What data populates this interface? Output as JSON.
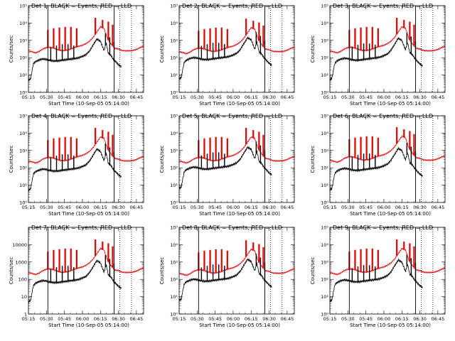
{
  "chart_data": {
    "type": "line",
    "layout": "3x3 grid",
    "y_scale": "log",
    "x_ticks": [
      "05:15",
      "05:30",
      "05:45",
      "06:00",
      "06:15",
      "06:30",
      "06:45"
    ],
    "x_tick_hours": [
      5.25,
      5.5,
      5.75,
      6.0,
      6.25,
      6.5,
      6.75
    ],
    "xlim": [
      5.25,
      6.85
    ],
    "xlabel": "Start Time (10-Sep-05 05:14:00)",
    "ylabel": "Counts/sec",
    "ylim": [
      1,
      100000
    ],
    "series_colors": {
      "events": "#000000",
      "lld": "#e00000"
    },
    "panels": [
      {
        "title": "Det 1: BLACK = Events, RED = LLD",
        "yticks_style": "exp",
        "events_scale": 1.0,
        "lld_scale": 1.0
      },
      {
        "title": "Det 2: BLACK = Events, RED = LLD",
        "yticks_style": "exp",
        "events_scale": 1.2,
        "lld_scale": 0.9
      },
      {
        "title": "Det 3: BLACK = Events, RED = LLD",
        "yticks_style": "exp",
        "events_scale": 1.1,
        "lld_scale": 1.0
      },
      {
        "title": "Det 4: BLACK = Events, RED = LLD",
        "yticks_style": "exp",
        "events_scale": 1.0,
        "lld_scale": 1.0
      },
      {
        "title": "Det 5: BLACK = Events, RED = LLD",
        "yticks_style": "exp",
        "events_scale": 1.3,
        "lld_scale": 1.0
      },
      {
        "title": "Det 6: BLACK = Events, RED = LLD",
        "yticks_style": "exp",
        "events_scale": 1.1,
        "lld_scale": 1.1
      },
      {
        "title": "Det 7: BLACK = Events, RED = LLD",
        "yticks_style": "plain",
        "events_scale": 1.0,
        "lld_scale": 1.0
      },
      {
        "title": "Det 8: BLACK = Events, RED = LLD",
        "yticks_style": "exp",
        "events_scale": 1.2,
        "lld_scale": 0.9
      },
      {
        "title": "Det 9: BLACK = Events, RED = LLD",
        "yticks_style": "exp",
        "events_scale": 1.1,
        "lld_scale": 1.0
      }
    ],
    "vertical_markers": [
      {
        "style": "solid",
        "x": 5.52
      },
      {
        "style": "solid",
        "x": 6.44
      },
      {
        "style": "dotted",
        "x": 6.52
      },
      {
        "style": "dotted",
        "x": 6.68
      }
    ],
    "lld_profile": {
      "x": [
        5.25,
        5.3,
        5.35,
        5.4,
        5.45,
        5.5,
        5.55,
        5.6,
        5.65,
        5.7,
        5.75,
        5.8,
        5.85,
        5.9,
        5.95,
        6.0,
        6.05,
        6.1,
        6.15,
        6.2,
        6.25,
        6.3,
        6.35,
        6.4,
        6.45,
        6.5,
        6.55,
        6.6,
        6.65,
        6.7,
        6.75,
        6.8,
        6.85
      ],
      "y": [
        250,
        220,
        190,
        230,
        320,
        380,
        400,
        360,
        300,
        260,
        260,
        280,
        330,
        400,
        460,
        520,
        650,
        900,
        1500,
        3000,
        6000,
        5000,
        1200,
        600,
        350,
        320,
        260,
        250,
        250,
        260,
        300,
        380,
        450
      ]
    },
    "events_profile": {
      "x": [
        5.25,
        5.28,
        5.3,
        5.32,
        5.35,
        5.4,
        5.45,
        5.5,
        5.55,
        5.6,
        5.65,
        5.7,
        5.75,
        5.8,
        5.85,
        5.9,
        5.95,
        6.0,
        6.05,
        6.1,
        6.15,
        6.2,
        6.25,
        6.3,
        6.33,
        6.36,
        6.4,
        6.43,
        6.46,
        6.5,
        6.54
      ],
      "y": [
        5,
        6,
        18,
        45,
        60,
        75,
        85,
        80,
        70,
        65,
        65,
        70,
        75,
        80,
        85,
        90,
        100,
        120,
        150,
        250,
        550,
        1200,
        900,
        260,
        700,
        180,
        130,
        80,
        60,
        40,
        30
      ]
    },
    "lld_spikes": {
      "x": [
        5.52,
        5.6,
        5.68,
        5.76,
        5.84,
        5.92,
        6.18,
        6.28,
        6.36,
        6.42
      ],
      "y": [
        4000,
        5000,
        5500,
        6000,
        6000,
        5000,
        20000,
        15000,
        12000,
        8000
      ]
    },
    "events_spikes": {
      "x": [
        5.56,
        5.64,
        5.72,
        5.8,
        5.88,
        6.32,
        6.38,
        6.44
      ],
      "y": [
        400,
        500,
        600,
        600,
        500,
        2500,
        1500,
        800
      ]
    }
  }
}
